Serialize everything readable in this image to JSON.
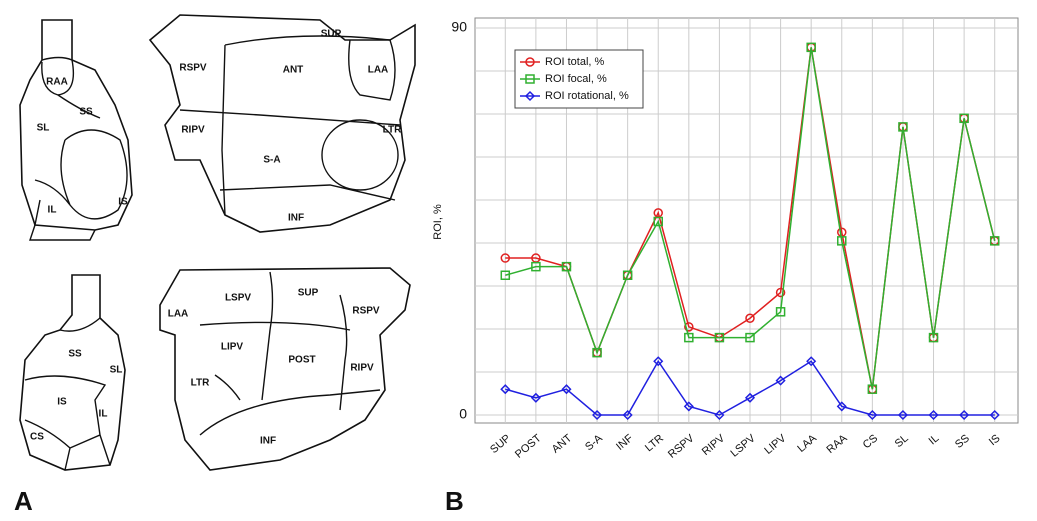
{
  "panels": {
    "a": "A",
    "b": "B"
  },
  "diagram": {
    "top_left": [
      "RAA",
      "SS",
      "SL",
      "IS",
      "IL"
    ],
    "top_right": [
      "SUP",
      "RSPV",
      "ANT",
      "LAA",
      "RIPV",
      "LTR",
      "S-A",
      "INF"
    ],
    "bottom_left": [
      "SS",
      "SL",
      "IS",
      "IL",
      "CS"
    ],
    "bottom_right": [
      "LAA",
      "LSPV",
      "SUP",
      "RSPV",
      "LIPV",
      "POST",
      "RIPV",
      "LTR",
      "INF"
    ]
  },
  "chart_data": {
    "type": "line",
    "y_label": "ROI, %",
    "categories": [
      "SUP",
      "POST",
      "ANT",
      "S-A",
      "INF",
      "LTR",
      "RSPV",
      "RIPV",
      "LSPV",
      "LIPV",
      "LAA",
      "RAA",
      "CS",
      "SL",
      "IL",
      "SS",
      "IS"
    ],
    "series": [
      {
        "name": "ROI total, %",
        "color": "#e02020",
        "marker": "circle",
        "values": [
          36.5,
          36.5,
          34.5,
          14.5,
          32.5,
          47,
          20.5,
          18,
          22.5,
          28.5,
          85.5,
          42.5,
          6,
          67,
          18,
          69,
          40.5
        ]
      },
      {
        "name": "ROI focal, %",
        "color": "#30b030",
        "marker": "square",
        "values": [
          32.5,
          34.5,
          34.5,
          14.5,
          32.5,
          45,
          18,
          18,
          18,
          24,
          85.5,
          40.5,
          6,
          67,
          18,
          69,
          40.5
        ]
      },
      {
        "name": "ROI rotational, %",
        "color": "#2020e0",
        "marker": "diamond",
        "values": [
          6,
          4,
          6,
          0,
          0,
          12.5,
          2,
          0,
          4,
          8,
          12.5,
          2,
          0,
          0,
          0,
          0,
          0
        ]
      }
    ],
    "ylim": [
      0,
      90
    ],
    "yticks": [
      0,
      90
    ],
    "minor_yticks": [
      10,
      20,
      30,
      40,
      50,
      60,
      70,
      80
    ],
    "grid": true,
    "legend": "upper-left"
  }
}
